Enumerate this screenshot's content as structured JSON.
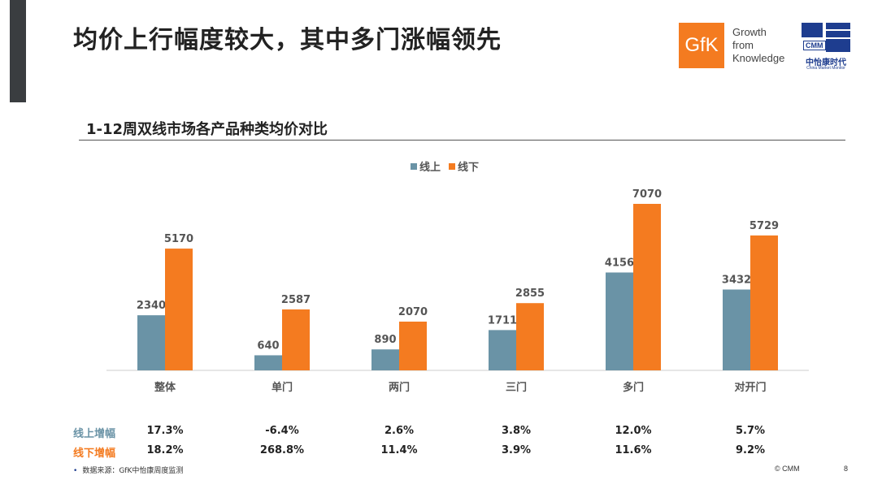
{
  "page": {
    "title": "均价上行幅度较大，其中多门涨幅领先",
    "page_number": "8",
    "copyright": "© CMM",
    "source": "数据来源：GfK中怡康周度监测"
  },
  "logos": {
    "gfk_text": "GfK",
    "gfk_tagline": [
      "Growth",
      "from",
      "Knowledge"
    ],
    "cmm_text": "CMM",
    "cmm_name": "中怡康时代",
    "cmm_english": "China Market Monitor"
  },
  "colors": {
    "online": "#6a93a6",
    "offline": "#f47b20",
    "gfk_orange": "#f47b20",
    "cmm_blue": "#1e3d8f"
  },
  "chart_data": {
    "type": "bar",
    "title": "1-12周双线市场各产品种类均价对比",
    "categories": [
      "整体",
      "单门",
      "两门",
      "三门",
      "多门",
      "对开门"
    ],
    "series": [
      {
        "name": "线上",
        "values": [
          2340,
          640,
          890,
          1711,
          4156,
          3432
        ]
      },
      {
        "name": "线下",
        "values": [
          5170,
          2587,
          2070,
          2855,
          7070,
          5729
        ]
      }
    ],
    "legend_position": "top-center",
    "grid": false
  },
  "growth_table": {
    "rows": [
      {
        "label": "线上增幅",
        "values": [
          "17.3%",
          "-6.4%",
          "2.6%",
          "3.8%",
          "12.0%",
          "5.7%"
        ]
      },
      {
        "label": "线下增幅",
        "values": [
          "18.2%",
          "268.8%",
          "11.4%",
          "3.9%",
          "11.6%",
          "9.2%"
        ]
      }
    ]
  }
}
